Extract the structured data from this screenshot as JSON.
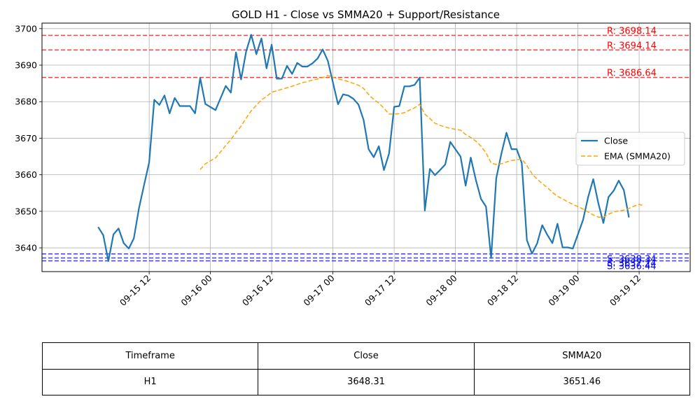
{
  "chart_data": {
    "type": "line",
    "title": "GOLD H1 - Close vs SMMA20 + Support/Resistance",
    "xlabel": "",
    "ylabel": "",
    "x_range": [
      "2025-09-14 15:00",
      "2025-09-19 22:00"
    ],
    "ylim": [
      3633.5,
      3701.5
    ],
    "yticks": [
      3640,
      3650,
      3660,
      3670,
      3680,
      3690,
      3700
    ],
    "xticks": [
      {
        "t": "2025-09-15 12:00",
        "label": "09-15 12"
      },
      {
        "t": "2025-09-16 00:00",
        "label": "09-16 00"
      },
      {
        "t": "2025-09-16 12:00",
        "label": "09-16 12"
      },
      {
        "t": "2025-09-17 00:00",
        "label": "09-17 00"
      },
      {
        "t": "2025-09-17 12:00",
        "label": "09-17 12"
      },
      {
        "t": "2025-09-18 00:00",
        "label": "09-18 00"
      },
      {
        "t": "2025-09-18 12:00",
        "label": "09-18 12"
      },
      {
        "t": "2025-09-19 00:00",
        "label": "09-19 00"
      },
      {
        "t": "2025-09-19 12:00",
        "label": "09-19 12"
      }
    ],
    "grid": true,
    "legend_position": "right",
    "legend": [
      "Close",
      "EMA (SMMA20)"
    ],
    "series": [
      {
        "name": "Close",
        "color": "#1f77b4",
        "style": "solid",
        "points": [
          [
            "2025-09-15 02:00",
            3645.7
          ],
          [
            "2025-09-15 03:00",
            3643.5
          ],
          [
            "2025-09-15 04:00",
            3636.4
          ],
          [
            "2025-09-15 05:00",
            3643.7
          ],
          [
            "2025-09-15 06:00",
            3645.3
          ],
          [
            "2025-09-15 07:00",
            3641.3
          ],
          [
            "2025-09-15 08:00",
            3639.8
          ],
          [
            "2025-09-15 09:00",
            3642.6
          ],
          [
            "2025-09-15 10:00",
            3650.8
          ],
          [
            "2025-09-15 11:00",
            3657.2
          ],
          [
            "2025-09-15 12:00",
            3663.4
          ],
          [
            "2025-09-15 13:00",
            3680.5
          ],
          [
            "2025-09-15 14:00",
            3679.1
          ],
          [
            "2025-09-15 15:00",
            3681.7
          ],
          [
            "2025-09-15 16:00",
            3676.8
          ],
          [
            "2025-09-15 17:00",
            3681.0
          ],
          [
            "2025-09-15 18:00",
            3678.8
          ],
          [
            "2025-09-15 19:00",
            3678.8
          ],
          [
            "2025-09-15 20:00",
            3678.8
          ],
          [
            "2025-09-15 21:00",
            3676.8
          ],
          [
            "2025-09-15 22:00",
            3686.5
          ],
          [
            "2025-09-15 23:00",
            3679.4
          ],
          [
            "2025-09-16 01:00",
            3677.7
          ],
          [
            "2025-09-16 02:00",
            3681.0
          ],
          [
            "2025-09-16 03:00",
            3684.3
          ],
          [
            "2025-09-16 04:00",
            3682.5
          ],
          [
            "2025-09-16 05:00",
            3693.5
          ],
          [
            "2025-09-16 06:00",
            3686.1
          ],
          [
            "2025-09-16 07:00",
            3693.8
          ],
          [
            "2025-09-16 08:00",
            3698.3
          ],
          [
            "2025-09-16 09:00",
            3693.0
          ],
          [
            "2025-09-16 10:00",
            3697.3
          ],
          [
            "2025-09-16 11:00",
            3689.1
          ],
          [
            "2025-09-16 12:00",
            3695.6
          ],
          [
            "2025-09-16 13:00",
            3686.3
          ],
          [
            "2025-09-16 14:00",
            3686.3
          ],
          [
            "2025-09-16 15:00",
            3689.8
          ],
          [
            "2025-09-16 16:00",
            3687.6
          ],
          [
            "2025-09-16 17:00",
            3690.6
          ],
          [
            "2025-09-16 18:00",
            3689.6
          ],
          [
            "2025-09-16 19:00",
            3689.6
          ],
          [
            "2025-09-16 20:00",
            3690.5
          ],
          [
            "2025-09-16 21:00",
            3691.8
          ],
          [
            "2025-09-16 22:00",
            3694.3
          ],
          [
            "2025-09-16 23:00",
            3691.2
          ],
          [
            "2025-09-17 01:00",
            3679.3
          ],
          [
            "2025-09-17 02:00",
            3682.0
          ],
          [
            "2025-09-17 03:00",
            3681.7
          ],
          [
            "2025-09-17 04:00",
            3680.8
          ],
          [
            "2025-09-17 05:00",
            3679.2
          ],
          [
            "2025-09-17 06:00",
            3675.0
          ],
          [
            "2025-09-17 07:00",
            3667.0
          ],
          [
            "2025-09-17 08:00",
            3664.8
          ],
          [
            "2025-09-17 09:00",
            3667.8
          ],
          [
            "2025-09-17 10:00",
            3661.3
          ],
          [
            "2025-09-17 11:00",
            3665.8
          ],
          [
            "2025-09-17 12:00",
            3678.6
          ],
          [
            "2025-09-17 13:00",
            3678.8
          ],
          [
            "2025-09-17 14:00",
            3684.2
          ],
          [
            "2025-09-17 15:00",
            3684.2
          ],
          [
            "2025-09-17 16:00",
            3684.6
          ],
          [
            "2025-09-17 17:00",
            3686.6
          ],
          [
            "2025-09-17 18:00",
            3650.2
          ],
          [
            "2025-09-17 19:00",
            3661.6
          ],
          [
            "2025-09-17 20:00",
            3659.9
          ],
          [
            "2025-09-17 21:00",
            3661.3
          ],
          [
            "2025-09-17 22:00",
            3662.8
          ],
          [
            "2025-09-17 23:00",
            3669.0
          ],
          [
            "2025-09-18 01:00",
            3665.0
          ],
          [
            "2025-09-18 02:00",
            3657.0
          ],
          [
            "2025-09-18 03:00",
            3664.7
          ],
          [
            "2025-09-18 04:00",
            3658.6
          ],
          [
            "2025-09-18 05:00",
            3653.4
          ],
          [
            "2025-09-18 06:00",
            3651.3
          ],
          [
            "2025-09-18 07:00",
            3637.2
          ],
          [
            "2025-09-18 08:00",
            3659.0
          ],
          [
            "2025-09-18 09:00",
            3665.7
          ],
          [
            "2025-09-18 10:00",
            3671.5
          ],
          [
            "2025-09-18 11:00",
            3667.0
          ],
          [
            "2025-09-18 12:00",
            3667.0
          ],
          [
            "2025-09-18 13:00",
            3663.2
          ],
          [
            "2025-09-18 14:00",
            3642.1
          ],
          [
            "2025-09-18 15:00",
            3638.4
          ],
          [
            "2025-09-18 16:00",
            3641.2
          ],
          [
            "2025-09-18 17:00",
            3646.2
          ],
          [
            "2025-09-18 18:00",
            3643.6
          ],
          [
            "2025-09-18 19:00",
            3641.3
          ],
          [
            "2025-09-18 20:00",
            3646.6
          ],
          [
            "2025-09-18 21:00",
            3640.1
          ],
          [
            "2025-09-18 22:00",
            3640.1
          ],
          [
            "2025-09-18 23:00",
            3639.8
          ],
          [
            "2025-09-19 01:00",
            3647.6
          ],
          [
            "2025-09-19 02:00",
            3653.9
          ],
          [
            "2025-09-19 03:00",
            3658.8
          ],
          [
            "2025-09-19 04:00",
            3652.2
          ],
          [
            "2025-09-19 05:00",
            3646.8
          ],
          [
            "2025-09-19 06:00",
            3653.9
          ],
          [
            "2025-09-19 07:00",
            3655.6
          ],
          [
            "2025-09-19 08:00",
            3658.4
          ],
          [
            "2025-09-19 09:00",
            3655.8
          ],
          [
            "2025-09-19 10:00",
            3648.3
          ]
        ]
      },
      {
        "name": "EMA (SMMA20)",
        "color": "#ffa500",
        "style": "dashed",
        "points": [
          [
            "2025-09-15 22:00",
            3661.4
          ],
          [
            "2025-09-15 23:00",
            3663.0
          ],
          [
            "2025-09-16 01:00",
            3664.6
          ],
          [
            "2025-09-16 02:00",
            3666.3
          ],
          [
            "2025-09-16 03:00",
            3668.0
          ],
          [
            "2025-09-16 04:00",
            3669.6
          ],
          [
            "2025-09-16 05:00",
            3671.6
          ],
          [
            "2025-09-16 06:00",
            3673.3
          ],
          [
            "2025-09-16 07:00",
            3675.5
          ],
          [
            "2025-09-16 08:00",
            3677.5
          ],
          [
            "2025-09-16 09:00",
            3679.0
          ],
          [
            "2025-09-16 10:00",
            3680.5
          ],
          [
            "2025-09-16 11:00",
            3681.4
          ],
          [
            "2025-09-16 12:00",
            3682.6
          ],
          [
            "2025-09-16 13:00",
            3683.0
          ],
          [
            "2025-09-16 14:00",
            3683.4
          ],
          [
            "2025-09-16 15:00",
            3683.8
          ],
          [
            "2025-09-16 16:00",
            3684.2
          ],
          [
            "2025-09-16 17:00",
            3684.7
          ],
          [
            "2025-09-16 18:00",
            3685.2
          ],
          [
            "2025-09-16 19:00",
            3685.5
          ],
          [
            "2025-09-16 20:00",
            3685.9
          ],
          [
            "2025-09-16 21:00",
            3686.2
          ],
          [
            "2025-09-16 22:00",
            3686.6
          ],
          [
            "2025-09-16 23:00",
            3687.2
          ],
          [
            "2025-09-17 01:00",
            3686.2
          ],
          [
            "2025-09-17 02:00",
            3685.9
          ],
          [
            "2025-09-17 03:00",
            3685.5
          ],
          [
            "2025-09-17 04:00",
            3685.0
          ],
          [
            "2025-09-17 05:00",
            3684.5
          ],
          [
            "2025-09-17 06:00",
            3683.6
          ],
          [
            "2025-09-17 07:00",
            3682.0
          ],
          [
            "2025-09-17 08:00",
            3680.6
          ],
          [
            "2025-09-17 09:00",
            3679.6
          ],
          [
            "2025-09-17 10:00",
            3678.2
          ],
          [
            "2025-09-17 11:00",
            3676.6
          ],
          [
            "2025-09-17 12:00",
            3676.6
          ],
          [
            "2025-09-17 13:00",
            3676.7
          ],
          [
            "2025-09-17 14:00",
            3677.0
          ],
          [
            "2025-09-17 15:00",
            3677.7
          ],
          [
            "2025-09-17 16:00",
            3678.3
          ],
          [
            "2025-09-17 17:00",
            3679.3
          ],
          [
            "2025-09-17 18:00",
            3676.6
          ],
          [
            "2025-09-17 19:00",
            3675.4
          ],
          [
            "2025-09-17 20:00",
            3674.1
          ],
          [
            "2025-09-17 21:00",
            3673.5
          ],
          [
            "2025-09-17 22:00",
            3673.1
          ],
          [
            "2025-09-17 23:00",
            3672.7
          ],
          [
            "2025-09-18 01:00",
            3672.2
          ],
          [
            "2025-09-18 02:00",
            3671.0
          ],
          [
            "2025-09-18 03:00",
            3670.2
          ],
          [
            "2025-09-18 04:00",
            3669.2
          ],
          [
            "2025-09-18 05:00",
            3667.8
          ],
          [
            "2025-09-18 06:00",
            3666.0
          ],
          [
            "2025-09-18 07:00",
            3663.2
          ],
          [
            "2025-09-18 08:00",
            3662.8
          ],
          [
            "2025-09-18 09:00",
            3663.0
          ],
          [
            "2025-09-18 10:00",
            3663.5
          ],
          [
            "2025-09-18 11:00",
            3663.9
          ],
          [
            "2025-09-18 12:00",
            3664.1
          ],
          [
            "2025-09-18 13:00",
            3664.3
          ],
          [
            "2025-09-18 14:00",
            3662.5
          ],
          [
            "2025-09-18 15:00",
            3660.3
          ],
          [
            "2025-09-18 16:00",
            3658.8
          ],
          [
            "2025-09-18 17:00",
            3657.6
          ],
          [
            "2025-09-18 18:00",
            3656.5
          ],
          [
            "2025-09-18 19:00",
            3655.2
          ],
          [
            "2025-09-18 20:00",
            3654.1
          ],
          [
            "2025-09-18 21:00",
            3653.4
          ],
          [
            "2025-09-18 22:00",
            3652.6
          ],
          [
            "2025-09-18 23:00",
            3651.9
          ],
          [
            "2025-09-19 01:00",
            3650.6
          ],
          [
            "2025-09-19 02:00",
            3649.8
          ],
          [
            "2025-09-19 03:00",
            3649.0
          ],
          [
            "2025-09-19 04:00",
            3648.4
          ],
          [
            "2025-09-19 05:00",
            3648.4
          ],
          [
            "2025-09-19 06:00",
            3649.2
          ],
          [
            "2025-09-19 07:00",
            3649.8
          ],
          [
            "2025-09-19 08:00",
            3650.1
          ],
          [
            "2025-09-19 09:00",
            3650.3
          ],
          [
            "2025-09-19 10:00",
            3650.8
          ],
          [
            "2025-09-19 11:00",
            3651.4
          ],
          [
            "2025-09-19 12:00",
            3651.9
          ],
          [
            "2025-09-19 13:00",
            3651.46
          ]
        ]
      }
    ],
    "levels": [
      {
        "kind": "resistance",
        "value": 3698.14,
        "label": "R: 3698.14",
        "color": "#ff0000"
      },
      {
        "kind": "resistance",
        "value": 3694.14,
        "label": "R: 3694.14",
        "color": "#ff0000"
      },
      {
        "kind": "resistance",
        "value": 3686.64,
        "label": "R: 3686.64",
        "color": "#ff0000"
      },
      {
        "kind": "support",
        "value": 3638.34,
        "label": "S: 3638.34",
        "color": "#0000ff"
      },
      {
        "kind": "support",
        "value": 3637.24,
        "label": "S: 3637.24",
        "color": "#0000ff"
      },
      {
        "kind": "support",
        "value": 3636.44,
        "label": "S: 3636.44",
        "color": "#0000ff"
      }
    ]
  },
  "table": {
    "headers": [
      "Timeframe",
      "Close",
      "SMMA20"
    ],
    "row": [
      "H1",
      "3648.31",
      "3651.46"
    ]
  }
}
